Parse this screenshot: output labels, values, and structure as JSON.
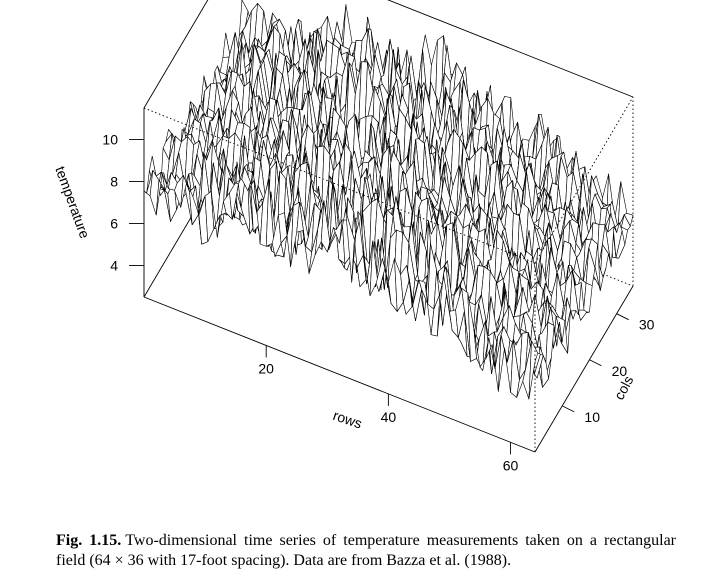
{
  "chart_data": {
    "type": "surface",
    "description_free": true,
    "x_axis": {
      "label": "rows",
      "ticks": [
        20,
        40,
        60
      ],
      "range": [
        1,
        64
      ]
    },
    "y_axis": {
      "label": "cols",
      "ticks": [
        10,
        20,
        30
      ],
      "range": [
        1,
        36
      ]
    },
    "z_axis": {
      "label": "temperature",
      "ticks": [
        4,
        6,
        8,
        10
      ],
      "range": [
        2.5,
        11.5
      ]
    },
    "grid": false,
    "box": true
  },
  "caption": {
    "lead": "Fig. 1.15.",
    "text": "Two-dimensional time series of temperature measurements taken on a rectangular field (64 × 36 with 17-foot spacing). Data are from Bazza et al. (1988)."
  }
}
